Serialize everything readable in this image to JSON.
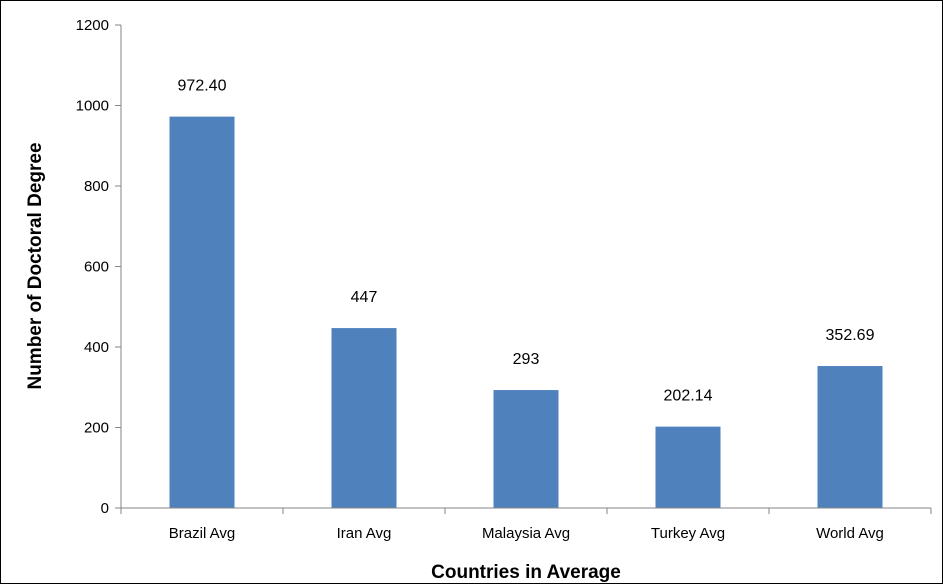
{
  "chart_data": {
    "type": "bar",
    "title": "",
    "xlabel": "Countries in Average",
    "ylabel": "Number of Doctoral Degree",
    "categories": [
      "Brazil Avg",
      "Iran Avg",
      "Malaysia Avg",
      "Turkey Avg",
      "World Avg"
    ],
    "values": [
      972.4,
      447,
      293,
      202.14,
      352.69
    ],
    "data_labels": [
      "972.40",
      "447",
      "293",
      "202.14",
      "352.69"
    ],
    "ylim": [
      0,
      1200
    ],
    "yticks": [
      "0",
      "200",
      "400",
      "600",
      "800",
      "1000",
      "1200"
    ],
    "grid": false,
    "legend": "none",
    "bar_color": "#4f81bd",
    "axis_color": "#868686"
  }
}
